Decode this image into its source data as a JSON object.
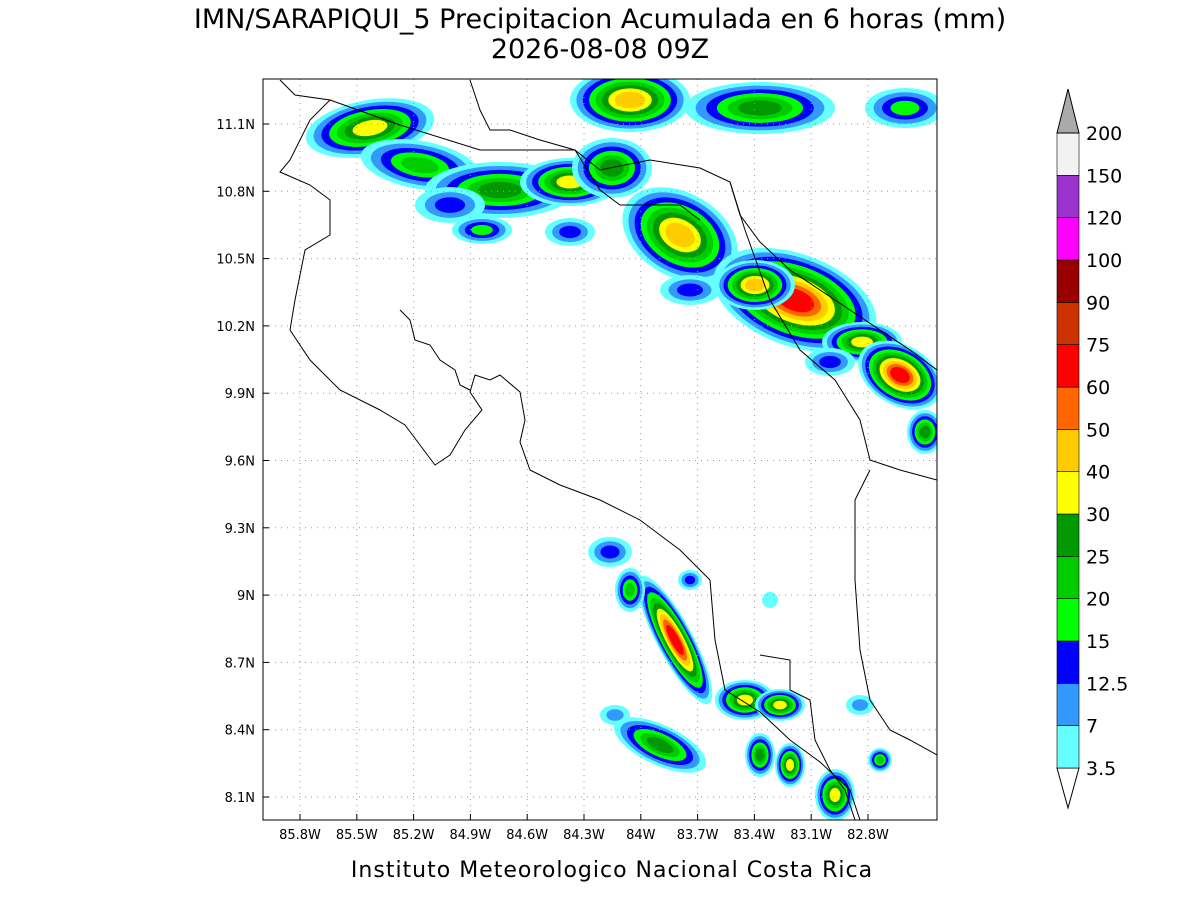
{
  "header": {
    "title": "IMN/SARAPIQUI_5 Precipitacion Acumulada en 6 horas (mm)",
    "subtitle": "2026-08-08 09Z"
  },
  "map": {
    "lon_ticks": [
      "85.8W",
      "85.5W",
      "85.2W",
      "84.9W",
      "84.6W",
      "84.3W",
      "84W",
      "83.7W",
      "83.4W",
      "83.1W",
      "82.8W"
    ],
    "lat_ticks": [
      "11.1N",
      "10.8N",
      "10.5N",
      "10.2N",
      "9.9N",
      "9.6N",
      "9.3N",
      "9N",
      "8.7N",
      "8.4N",
      "8.1N"
    ]
  },
  "legend": {
    "labels": [
      "3.5",
      "7",
      "12.5",
      "15",
      "20",
      "25",
      "30",
      "40",
      "50",
      "60",
      "75",
      "90",
      "100",
      "120",
      "150",
      "200"
    ],
    "colors": [
      "#ffffff",
      "#66ffff",
      "#3399ff",
      "#0000ff",
      "#00ff00",
      "#00cc00",
      "#009900",
      "#ffff00",
      "#ffcc00",
      "#ff6600",
      "#ff0000",
      "#cc3300",
      "#990000",
      "#ff00ff",
      "#9933cc",
      "#f2f2f2",
      "#aaaaaa"
    ]
  },
  "footer": "Instituto Meteorologico Nacional Costa Rica"
}
